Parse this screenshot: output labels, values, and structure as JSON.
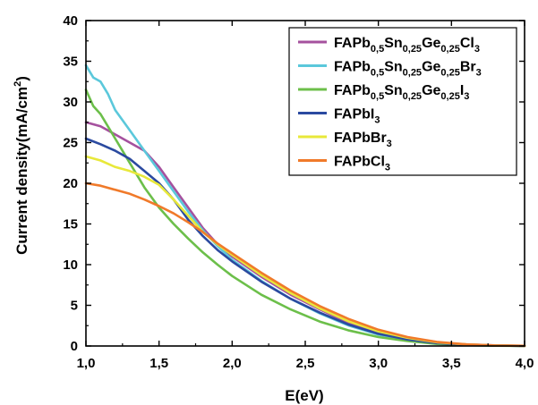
{
  "chart_data": {
    "type": "line",
    "xlabel": "E(eV)",
    "ylabel_main": "Current density(mA/cm",
    "ylabel_sup": "2",
    "ylabel_close": ")",
    "xlim": [
      1.0,
      4.0
    ],
    "ylim": [
      0,
      40
    ],
    "xticks": [
      "1,0",
      "1,5",
      "2,0",
      "2,5",
      "3,0",
      "3,5",
      "4,0"
    ],
    "yticks": [
      "0",
      "5",
      "10",
      "15",
      "20",
      "25",
      "30",
      "35",
      "40"
    ],
    "legend_position": "top-right",
    "grid": false,
    "series": [
      {
        "name": "FAPb0,5Sn0,25Ge0,25Cl3",
        "name_parts": [
          [
            "FAPb",
            ""
          ],
          [
            "0,5",
            "sub"
          ],
          [
            "Sn",
            ""
          ],
          [
            "0,25",
            "sub"
          ],
          [
            "Ge",
            ""
          ],
          [
            "0,25",
            "sub"
          ],
          [
            "Cl",
            ""
          ],
          [
            "3",
            "sub"
          ]
        ],
        "color": "#a5519e",
        "x": [
          1.0,
          1.1,
          1.2,
          1.3,
          1.4,
          1.5,
          1.6,
          1.7,
          1.8,
          1.9,
          2.0,
          2.2,
          2.4,
          2.6,
          2.8,
          3.0,
          3.2,
          3.4,
          3.6,
          3.8,
          4.0
        ],
        "y": [
          27.5,
          27.0,
          26.0,
          25.0,
          24.0,
          22.0,
          19.5,
          17.0,
          14.5,
          12.5,
          11.0,
          8.5,
          6.3,
          4.5,
          2.8,
          1.6,
          0.9,
          0.4,
          0.2,
          0.08,
          0.02
        ]
      },
      {
        "name": "FAPb0,5Sn0,25Ge0,25Br3",
        "name_parts": [
          [
            "FAPb",
            ""
          ],
          [
            "0,5",
            "sub"
          ],
          [
            "Sn",
            ""
          ],
          [
            "0,25",
            "sub"
          ],
          [
            "Ge",
            ""
          ],
          [
            "0,25",
            "sub"
          ],
          [
            "Br",
            ""
          ],
          [
            "3",
            "sub"
          ]
        ],
        "color": "#5bc8db",
        "x": [
          1.0,
          1.05,
          1.1,
          1.15,
          1.2,
          1.3,
          1.4,
          1.5,
          1.6,
          1.7,
          1.8,
          1.9,
          2.0,
          2.2,
          2.4,
          2.6,
          2.8,
          3.0,
          3.2,
          3.4,
          3.6,
          3.8,
          4.0
        ],
        "y": [
          34.5,
          33.0,
          32.5,
          31.0,
          29.0,
          26.5,
          24.0,
          21.5,
          19.0,
          16.5,
          14.2,
          12.3,
          10.6,
          8.0,
          5.8,
          4.0,
          2.5,
          1.4,
          0.8,
          0.35,
          0.15,
          0.05,
          0.01
        ]
      },
      {
        "name": "FAPb0,5Sn0,25Ge0,25I3",
        "name_parts": [
          [
            "FAPb",
            ""
          ],
          [
            "0,5",
            "sub"
          ],
          [
            "Sn",
            ""
          ],
          [
            "0,25",
            "sub"
          ],
          [
            "Ge",
            ""
          ],
          [
            "0,25",
            "sub"
          ],
          [
            "I",
            ""
          ],
          [
            "3",
            "sub"
          ]
        ],
        "color": "#6cbf4a",
        "x": [
          1.0,
          1.05,
          1.1,
          1.2,
          1.3,
          1.4,
          1.5,
          1.6,
          1.7,
          1.8,
          1.9,
          2.0,
          2.2,
          2.4,
          2.6,
          2.8,
          3.0,
          3.2,
          3.4,
          3.6,
          3.8,
          4.0
        ],
        "y": [
          31.5,
          29.5,
          28.5,
          25.5,
          22.5,
          19.5,
          17.0,
          15.0,
          13.2,
          11.5,
          10.0,
          8.6,
          6.3,
          4.5,
          3.0,
          1.9,
          1.1,
          0.6,
          0.25,
          0.1,
          0.03,
          0.01
        ]
      },
      {
        "name": "FAPbI3",
        "name_parts": [
          [
            "FAPbI",
            ""
          ],
          [
            "3",
            "sub"
          ]
        ],
        "color": "#2b4aa0",
        "x": [
          1.0,
          1.1,
          1.2,
          1.3,
          1.4,
          1.5,
          1.6,
          1.7,
          1.8,
          1.9,
          2.0,
          2.2,
          2.4,
          2.6,
          2.8,
          3.0,
          3.2,
          3.4,
          3.6,
          3.8,
          4.0
        ],
        "y": [
          25.5,
          24.8,
          24.0,
          23.0,
          21.5,
          20.0,
          18.0,
          15.5,
          13.5,
          11.8,
          10.4,
          7.9,
          5.8,
          4.1,
          2.6,
          1.5,
          0.8,
          0.35,
          0.15,
          0.05,
          0.01
        ]
      },
      {
        "name": "FAPbBr3",
        "name_parts": [
          [
            "FAPbBr",
            ""
          ],
          [
            "3",
            "sub"
          ]
        ],
        "color": "#e8e83a",
        "x": [
          1.0,
          1.1,
          1.2,
          1.3,
          1.4,
          1.5,
          1.6,
          1.7,
          1.8,
          1.9,
          2.0,
          2.2,
          2.4,
          2.6,
          2.8,
          3.0,
          3.2,
          3.4,
          3.6,
          3.8,
          4.0
        ],
        "y": [
          23.3,
          22.8,
          22.0,
          21.5,
          20.8,
          19.8,
          18.0,
          16.0,
          14.0,
          12.5,
          11.2,
          8.7,
          6.5,
          4.6,
          3.0,
          1.8,
          1.0,
          0.45,
          0.2,
          0.07,
          0.02
        ]
      },
      {
        "name": "FAPbCl3",
        "name_parts": [
          [
            "FAPbCl",
            ""
          ],
          [
            "3",
            "sub"
          ]
        ],
        "color": "#f07a2a",
        "x": [
          1.0,
          1.1,
          1.2,
          1.3,
          1.4,
          1.5,
          1.6,
          1.7,
          1.8,
          1.9,
          2.0,
          2.2,
          2.4,
          2.6,
          2.8,
          3.0,
          3.2,
          3.4,
          3.6,
          3.8,
          4.0
        ],
        "y": [
          20.0,
          19.7,
          19.2,
          18.7,
          18.0,
          17.2,
          16.3,
          15.2,
          14.0,
          12.6,
          11.4,
          9.0,
          6.8,
          4.9,
          3.3,
          2.0,
          1.1,
          0.5,
          0.2,
          0.07,
          0.02
        ]
      }
    ]
  }
}
